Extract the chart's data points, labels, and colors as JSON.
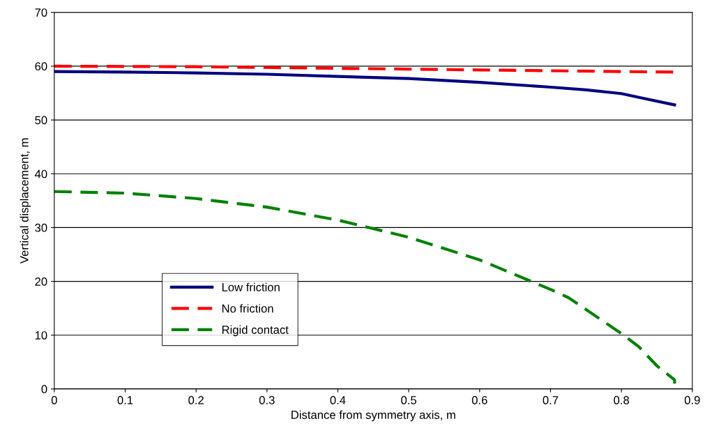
{
  "chart_data": {
    "type": "line",
    "xlabel": "Distance from symmetry axis, m",
    "ylabel": "Vertical displacement, m",
    "xlim": [
      0,
      0.9
    ],
    "xticks": [
      0,
      0.1,
      0.2,
      0.3,
      0.4,
      0.5,
      0.6,
      0.7,
      0.8,
      0.9
    ],
    "ylim": [
      0,
      70
    ],
    "yticks": [
      0,
      10,
      20,
      30,
      40,
      50,
      60,
      70
    ],
    "grid": "y",
    "legend": "bottom left",
    "marker": "none",
    "series": [
      {
        "name": "Low friction",
        "color": "#000080",
        "line_style": "solid",
        "x": [
          0,
          0.1,
          0.2,
          0.3,
          0.4,
          0.5,
          0.6,
          0.7,
          0.75,
          0.8,
          0.825,
          0.875
        ],
        "values": [
          59.0,
          58.9,
          58.75,
          58.5,
          58.1,
          57.7,
          57.0,
          56.1,
          55.6,
          54.9,
          54.2,
          52.8
        ]
      },
      {
        "name": "No friction",
        "color": "#ff0000",
        "line_style": "dashed",
        "x": [
          0,
          0.2,
          0.4,
          0.6,
          0.8,
          0.875
        ],
        "values": [
          60.0,
          59.9,
          59.6,
          59.3,
          59.0,
          58.9
        ]
      },
      {
        "name": "Rigid contact",
        "color": "#008000",
        "line_style": "dashed",
        "x": [
          0,
          0.1,
          0.2,
          0.3,
          0.4,
          0.45,
          0.5,
          0.6,
          0.7,
          0.725,
          0.8,
          0.825,
          0.85,
          0.875,
          0.875
        ],
        "values": [
          36.7,
          36.4,
          35.4,
          33.8,
          31.4,
          29.8,
          28.2,
          24.0,
          18.5,
          17.0,
          10.3,
          7.8,
          4.3,
          1.7,
          1.0
        ]
      }
    ]
  }
}
